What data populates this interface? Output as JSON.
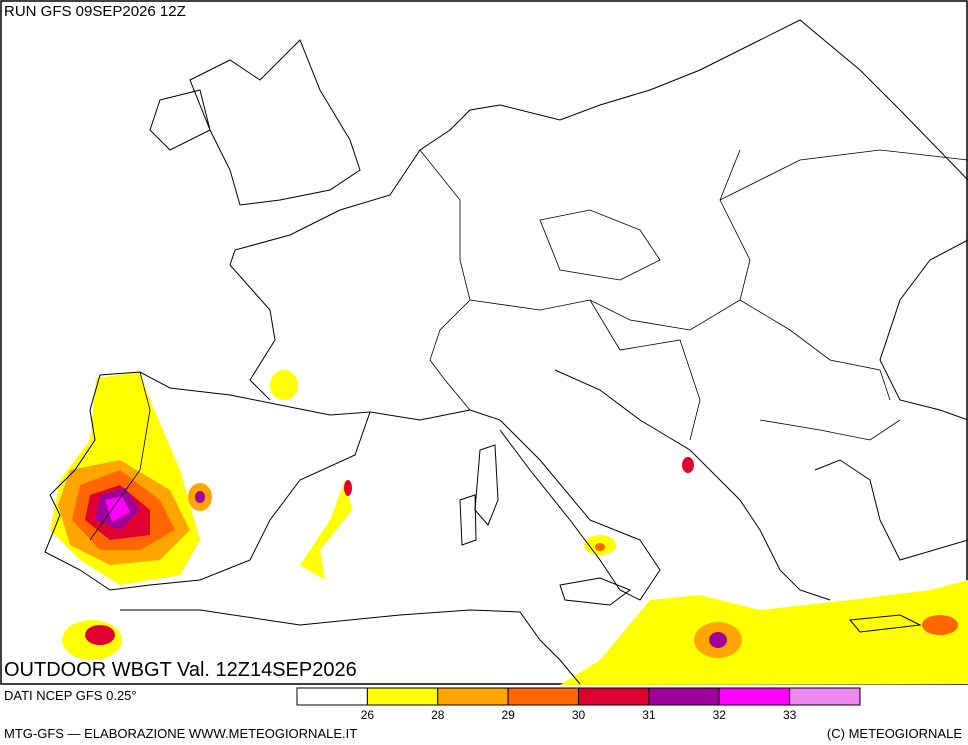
{
  "run_label": "RUN GFS 09SEP2026 12Z",
  "map_title": "OUTDOOR WBGT Val. 12Z14SEP2026",
  "source": "DATI NCEP GFS 0.25°",
  "legend": {
    "colors": [
      "#ffffff",
      "#ffff00",
      "#ffa500",
      "#ff6600",
      "#e00030",
      "#a0009a",
      "#ff00ff",
      "#ee88ee"
    ],
    "ticks": [
      26,
      28,
      29,
      30,
      31,
      32,
      33
    ]
  },
  "footer": {
    "left": "MTG-GFS — ELABORAZIONE WWW.METEOGIORNALE.IT",
    "right": "(C) METEOGIORNALE"
  }
}
